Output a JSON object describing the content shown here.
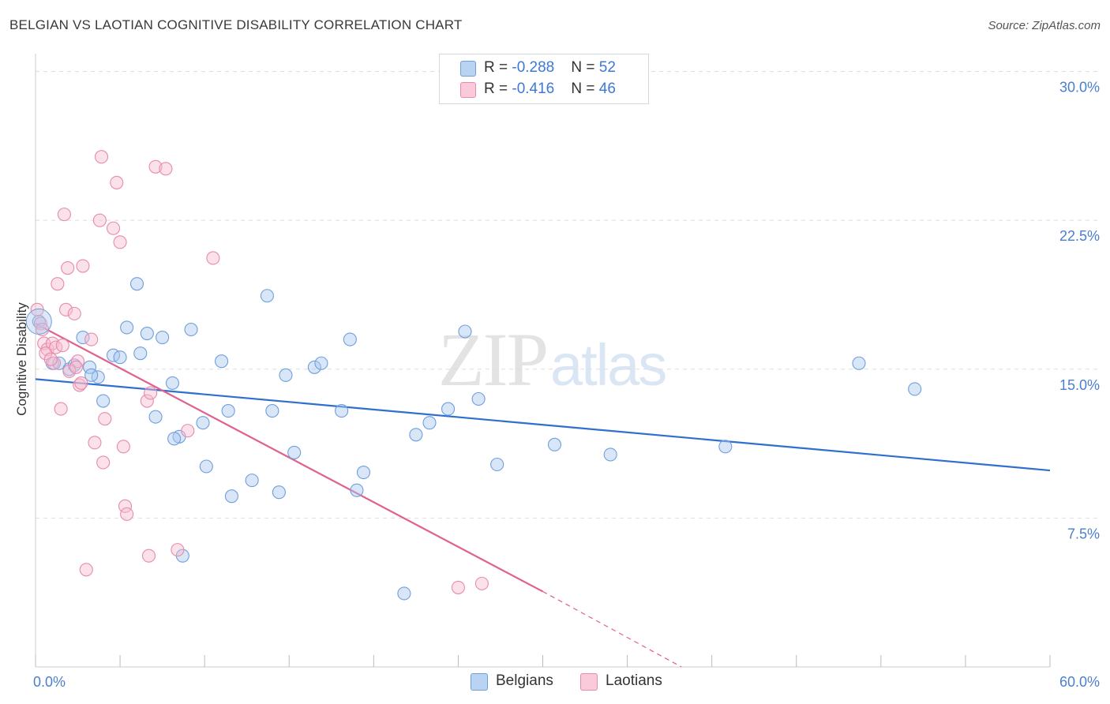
{
  "header": {
    "title": "BELGIAN VS LAOTIAN COGNITIVE DISABILITY CORRELATION CHART",
    "source": "Source: ZipAtlas.com"
  },
  "watermark": {
    "zip": "ZIP",
    "atlas": "atlas"
  },
  "legend": {
    "rows": [
      {
        "r_label": "R = ",
        "r_value": "-0.288",
        "n_label": "N = ",
        "n_value": "52"
      },
      {
        "r_label": "R = ",
        "r_value": "-0.416",
        "n_label": "N = ",
        "n_value": "46"
      }
    ]
  },
  "bottom_legend": {
    "belgians": "Belgians",
    "laotians": "Laotians"
  },
  "colors": {
    "belgians_fill": "#a9c8f0",
    "belgians_stroke": "#6e9fdc",
    "belgians_line": "#2f6fd0",
    "laotians_fill": "#f7bcd0",
    "laotians_stroke": "#e88aab",
    "laotians_line": "#e0608e",
    "tick_text": "#4a7fd0",
    "grid": "#dddddd"
  },
  "chart_data": {
    "type": "scatter",
    "title": "BELGIAN VS LAOTIAN COGNITIVE DISABILITY CORRELATION CHART",
    "xlabel": "",
    "ylabel": "Cognitive Disability",
    "xlim": [
      0,
      60
    ],
    "ylim": [
      0,
      30.5
    ],
    "x_tick_labels": [
      "0.0%",
      "60.0%"
    ],
    "y_ticks": [
      7.5,
      15.0,
      22.5,
      30.0
    ],
    "y_tick_labels": [
      "7.5%",
      "15.0%",
      "22.5%",
      "30.0%"
    ],
    "grid": true,
    "legend_position": "top-center",
    "series": [
      {
        "name": "Belgians",
        "points": [
          [
            0.2,
            17.4
          ],
          [
            1.0,
            15.3
          ],
          [
            1.4,
            15.3
          ],
          [
            2.0,
            15.0
          ],
          [
            2.3,
            15.2
          ],
          [
            2.8,
            16.6
          ],
          [
            3.2,
            15.1
          ],
          [
            3.7,
            14.6
          ],
          [
            4.0,
            13.4
          ],
          [
            4.6,
            15.7
          ],
          [
            5.0,
            15.6
          ],
          [
            5.4,
            17.1
          ],
          [
            6.0,
            19.3
          ],
          [
            6.2,
            15.8
          ],
          [
            6.6,
            16.8
          ],
          [
            7.1,
            12.6
          ],
          [
            7.5,
            16.6
          ],
          [
            8.1,
            14.3
          ],
          [
            8.5,
            11.6
          ],
          [
            8.7,
            5.6
          ],
          [
            9.2,
            17.0
          ],
          [
            9.9,
            12.3
          ],
          [
            10.1,
            10.1
          ],
          [
            11.0,
            15.4
          ],
          [
            11.4,
            12.9
          ],
          [
            11.6,
            8.6
          ],
          [
            12.8,
            9.4
          ],
          [
            13.7,
            18.7
          ],
          [
            14.0,
            12.9
          ],
          [
            14.4,
            8.8
          ],
          [
            14.8,
            14.7
          ],
          [
            15.3,
            10.8
          ],
          [
            16.5,
            15.1
          ],
          [
            16.9,
            15.3
          ],
          [
            18.1,
            12.9
          ],
          [
            18.6,
            16.5
          ],
          [
            19.0,
            8.9
          ],
          [
            19.4,
            9.8
          ],
          [
            21.8,
            3.7
          ],
          [
            22.5,
            11.7
          ],
          [
            23.3,
            12.3
          ],
          [
            24.4,
            13.0
          ],
          [
            25.4,
            16.9
          ],
          [
            26.2,
            13.5
          ],
          [
            27.3,
            10.2
          ],
          [
            30.7,
            11.2
          ],
          [
            34.0,
            10.7
          ],
          [
            40.8,
            11.1
          ],
          [
            48.7,
            15.3
          ],
          [
            52.0,
            14.0
          ],
          [
            8.2,
            11.5
          ],
          [
            3.3,
            14.7
          ]
        ]
      },
      {
        "name": "Laotians",
        "points": [
          [
            0.1,
            18.0
          ],
          [
            0.3,
            17.3
          ],
          [
            0.5,
            16.3
          ],
          [
            0.7,
            16.0
          ],
          [
            1.0,
            16.3
          ],
          [
            1.1,
            15.3
          ],
          [
            1.3,
            19.3
          ],
          [
            1.5,
            13.0
          ],
          [
            1.7,
            22.8
          ],
          [
            1.8,
            18.0
          ],
          [
            1.9,
            20.1
          ],
          [
            2.3,
            17.8
          ],
          [
            2.5,
            15.4
          ],
          [
            2.6,
            14.2
          ],
          [
            2.8,
            20.2
          ],
          [
            3.0,
            4.9
          ],
          [
            3.3,
            16.5
          ],
          [
            3.5,
            11.3
          ],
          [
            3.8,
            22.5
          ],
          [
            3.9,
            25.7
          ],
          [
            4.0,
            10.3
          ],
          [
            4.1,
            12.5
          ],
          [
            4.6,
            22.1
          ],
          [
            4.8,
            24.4
          ],
          [
            5.0,
            21.4
          ],
          [
            5.2,
            11.1
          ],
          [
            5.3,
            8.1
          ],
          [
            5.4,
            7.7
          ],
          [
            6.6,
            13.4
          ],
          [
            6.7,
            5.6
          ],
          [
            6.8,
            13.8
          ],
          [
            7.1,
            25.2
          ],
          [
            7.7,
            25.1
          ],
          [
            8.4,
            5.9
          ],
          [
            9.0,
            11.9
          ],
          [
            10.5,
            20.6
          ],
          [
            25.0,
            4.0
          ],
          [
            26.4,
            4.2
          ],
          [
            0.6,
            15.8
          ],
          [
            1.2,
            16.1
          ],
          [
            2.0,
            14.9
          ],
          [
            2.4,
            15.1
          ],
          [
            2.7,
            14.3
          ],
          [
            0.9,
            15.5
          ],
          [
            1.6,
            16.2
          ],
          [
            0.4,
            17.0
          ]
        ]
      }
    ],
    "trend_lines": [
      {
        "series": "Belgians",
        "from": [
          0,
          14.5
        ],
        "to": [
          60,
          9.9
        ]
      },
      {
        "series": "Laotians",
        "from": [
          0,
          17.3
        ],
        "to": [
          30,
          3.8
        ],
        "dashed_to": [
          38.2,
          0.0
        ]
      }
    ]
  }
}
